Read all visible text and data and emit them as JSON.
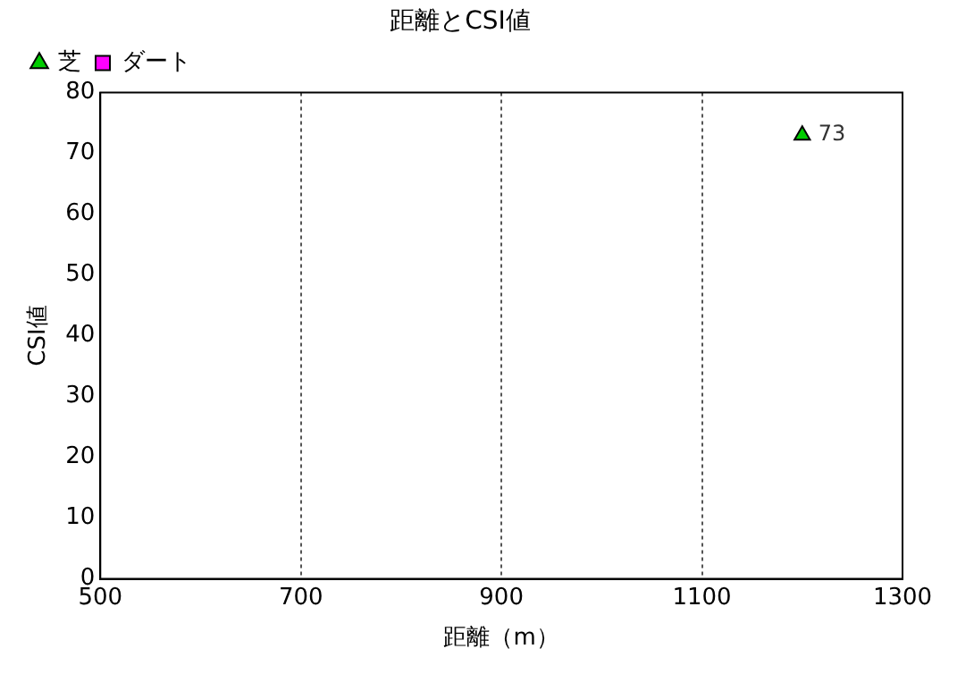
{
  "chart_data": {
    "type": "scatter",
    "title": "距離とCSI値",
    "xlabel": "距離（m）",
    "ylabel": "CSI値",
    "series": [
      {
        "name": "芝",
        "color": "#00cc00",
        "marker": "triangle",
        "x": [
          1200
        ],
        "values": [
          73
        ]
      },
      {
        "name": "ダート",
        "color": "#ff00ff",
        "marker": "square"
      }
    ],
    "xlim": [
      500,
      1300
    ],
    "xticks": [
      500,
      700,
      900,
      1100,
      1300
    ],
    "ylim": [
      0,
      80
    ],
    "yticks": [
      0,
      10,
      20,
      30,
      40,
      50,
      60,
      70,
      80
    ],
    "grid": "x",
    "legend": "top left",
    "data_labels": true
  }
}
